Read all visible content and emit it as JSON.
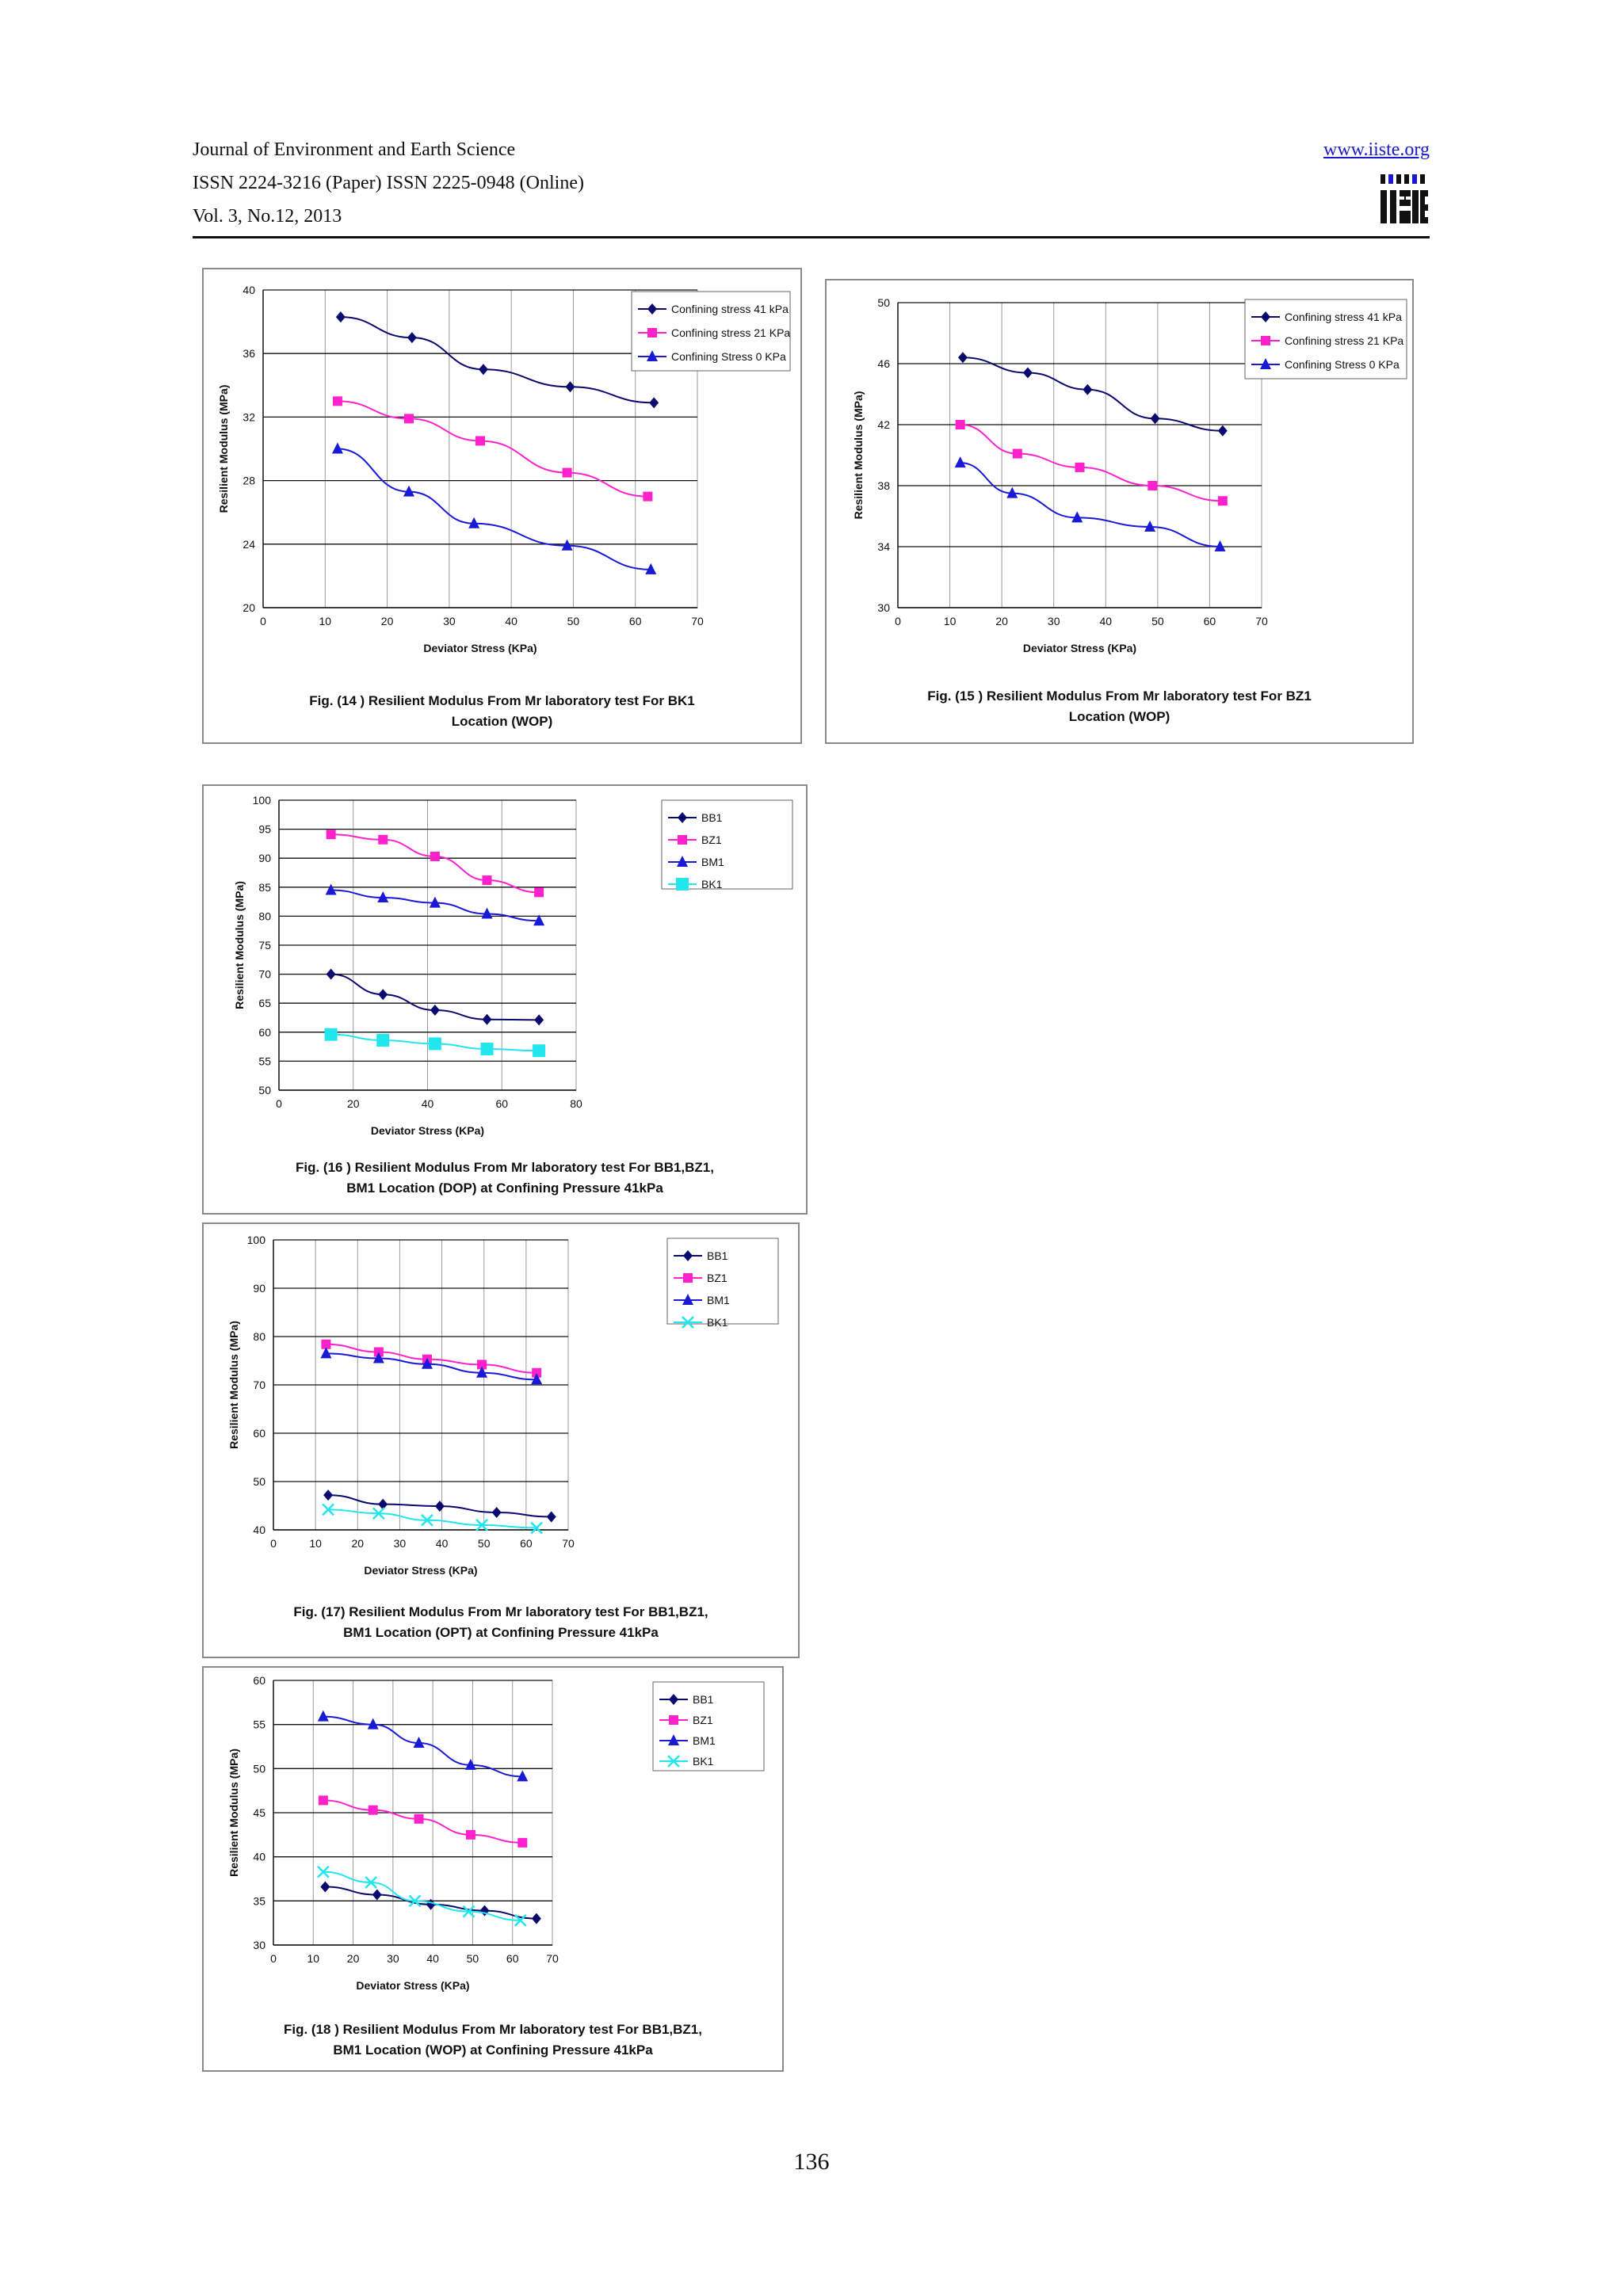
{
  "header": {
    "journal": "Journal of Environment and Earth Science",
    "issn": "ISSN 2224-3216 (Paper) ISSN 2225-0948 (Online)",
    "volume": "Vol. 3, No.12, 2013",
    "url": "www.iiste.org",
    "logo_text": "IISTE"
  },
  "page_number": "136",
  "colors": {
    "navy": "#0a0a6e",
    "magenta": "#ff22cc",
    "blue": "#1a1ad6",
    "cyan": "#22e6ee"
  },
  "chart_data": [
    {
      "type": "line",
      "title": "Fig. (14 )  Resilient Modulus From Mr laboratory test For  BK1 Location (WOP)",
      "title_lines": [
        "Fig. (14 )  Resilient Modulus From Mr laboratory test For  BK1",
        "Location (WOP)"
      ],
      "xlabel": "Deviator Stress (KPa)",
      "ylabel": "Resilient Modulus (MPa)",
      "xlim": [
        0,
        70
      ],
      "ylim": [
        20,
        40
      ],
      "xticks": [
        0,
        10,
        20,
        30,
        40,
        50,
        60,
        70
      ],
      "yticks": [
        20,
        24,
        28,
        32,
        36,
        40
      ],
      "legend": "top-right",
      "series": [
        {
          "name": "Confining stress 41 kPa",
          "color": "#0a0a6e",
          "marker": "diamond",
          "x": [
            12.5,
            24,
            35.5,
            49.5,
            63
          ],
          "y": [
            38.3,
            37,
            35,
            33.9,
            32.9
          ]
        },
        {
          "name": "Confining stress 21 KPa",
          "color": "#ff22cc",
          "marker": "square",
          "x": [
            12,
            23.5,
            35,
            49,
            62
          ],
          "y": [
            33,
            31.9,
            30.5,
            28.5,
            27
          ]
        },
        {
          "name": "Confining Stress 0 KPa",
          "color": "#1a1ad6",
          "marker": "triangle",
          "x": [
            12,
            23.5,
            34,
            49,
            62.5
          ],
          "y": [
            30,
            27.3,
            25.3,
            23.9,
            22.4
          ]
        }
      ]
    },
    {
      "type": "line",
      "title": "Fig. (15 )  Resilient Modulus From Mr laboratory test For  BZ1 Location (WOP)",
      "title_lines": [
        "Fig. (15 )  Resilient Modulus From Mr laboratory test For  BZ1",
        "Location (WOP)"
      ],
      "xlabel": "Deviator Stress (KPa)",
      "ylabel": "Resilient Modulus (MPa)",
      "xlim": [
        0,
        70
      ],
      "ylim": [
        30,
        50
      ],
      "xticks": [
        0,
        10,
        20,
        30,
        40,
        50,
        60,
        70
      ],
      "yticks": [
        30,
        34,
        38,
        42,
        46,
        50
      ],
      "legend": "top-right",
      "series": [
        {
          "name": "Confining stress 41 kPa",
          "color": "#0a0a6e",
          "marker": "diamond",
          "x": [
            12.5,
            25,
            36.5,
            49.5,
            62.5
          ],
          "y": [
            46.4,
            45.4,
            44.3,
            42.4,
            41.6
          ]
        },
        {
          "name": "Confining stress 21 KPa",
          "color": "#ff22cc",
          "marker": "square",
          "x": [
            12,
            23,
            35,
            49,
            62.5
          ],
          "y": [
            42,
            40.1,
            39.2,
            38,
            37
          ]
        },
        {
          "name": "Confining Stress 0 KPa",
          "color": "#1a1ad6",
          "marker": "triangle",
          "x": [
            12,
            22,
            34.5,
            48.5,
            62
          ],
          "y": [
            39.5,
            37.5,
            35.9,
            35.3,
            34
          ]
        }
      ]
    },
    {
      "type": "line",
      "title": "Fig. (16 )  Resilient Modulus From Mr laboratory test For BB1,BZ1, BM1 Location (DOP) at Confining Pressure 41kPa",
      "title_lines": [
        "Fig. (16 )  Resilient Modulus From Mr laboratory test For BB1,BZ1,",
        "BM1 Location (DOP) at Confining Pressure 41kPa"
      ],
      "xlabel": "Deviator Stress (KPa)",
      "ylabel": "Resilient Modulus (MPa)",
      "xlim": [
        0,
        80
      ],
      "ylim": [
        50,
        100
      ],
      "xticks": [
        0,
        20,
        40,
        60,
        80
      ],
      "yticks": [
        50,
        55,
        60,
        65,
        70,
        75,
        80,
        85,
        90,
        95,
        100
      ],
      "legend": "top-right",
      "series": [
        {
          "name": "BB1",
          "color": "#0a0a6e",
          "marker": "diamond",
          "x": [
            14,
            28,
            42,
            56,
            70
          ],
          "y": [
            70,
            66.5,
            63.8,
            62.2,
            62.1
          ]
        },
        {
          "name": "BZ1",
          "color": "#ff22cc",
          "marker": "square",
          "x": [
            14,
            28,
            42,
            56,
            70
          ],
          "y": [
            94.1,
            93.2,
            90.3,
            86.2,
            84.1
          ]
        },
        {
          "name": "BM1",
          "color": "#1a1ad6",
          "marker": "triangle",
          "x": [
            14,
            28,
            42,
            56,
            70
          ],
          "y": [
            84.5,
            83.2,
            82.3,
            80.4,
            79.2
          ]
        },
        {
          "name": "BK1",
          "color": "#22e6ee",
          "marker": "bigsquare",
          "x": [
            14,
            28,
            42,
            56,
            70
          ],
          "y": [
            59.6,
            58.6,
            58,
            57.1,
            56.8
          ]
        }
      ]
    },
    {
      "type": "line",
      "title": "Fig. (17)  Resilient Modulus From Mr laboratory test For BB1,BZ1, BM1 Location (OPT) at Confining Pressure 41kPa",
      "title_lines": [
        "Fig. (17)  Resilient Modulus From Mr laboratory test For BB1,BZ1,",
        "BM1 Location (OPT) at Confining Pressure 41kPa"
      ],
      "xlabel": "Deviator Stress (KPa)",
      "ylabel": "Resilient Modulus (MPa)",
      "xlim": [
        0,
        70
      ],
      "ylim": [
        40,
        100
      ],
      "xticks": [
        0,
        10,
        20,
        30,
        40,
        50,
        60,
        70
      ],
      "yticks": [
        40,
        50,
        60,
        70,
        80,
        90,
        100
      ],
      "legend": "top-right",
      "series": [
        {
          "name": "BB1",
          "color": "#0a0a6e",
          "marker": "diamond",
          "x": [
            13,
            26,
            39.5,
            53,
            66
          ],
          "y": [
            47.2,
            45.3,
            44.9,
            43.6,
            42.7
          ]
        },
        {
          "name": "BZ1",
          "color": "#ff22cc",
          "marker": "square",
          "x": [
            12.5,
            25,
            36.5,
            49.5,
            62.5
          ],
          "y": [
            78.4,
            76.8,
            75.3,
            74.2,
            72.5
          ]
        },
        {
          "name": "BM1",
          "color": "#1a1ad6",
          "marker": "triangle",
          "x": [
            12.5,
            25,
            36.5,
            49.5,
            62.5
          ],
          "y": [
            76.5,
            75.5,
            74.3,
            72.5,
            71.1
          ]
        },
        {
          "name": "BK1",
          "color": "#22e6ee",
          "marker": "cross",
          "x": [
            13,
            25,
            36.5,
            49.5,
            62.5
          ],
          "y": [
            44.2,
            43.4,
            42,
            41,
            40.4
          ]
        }
      ]
    },
    {
      "type": "line",
      "title": "Fig. (18 )  Resilient Modulus From Mr laboratory test For BB1,BZ1, BM1 Location (WOP) at Confining Pressure 41kPa",
      "title_lines": [
        "Fig. (18 )  Resilient Modulus From Mr laboratory test For BB1,BZ1,",
        "BM1 Location (WOP) at Confining Pressure 41kPa"
      ],
      "xlabel": "Deviator Stress (KPa)",
      "ylabel": "Resilient Modulus (MPa)",
      "xlim": [
        0,
        70
      ],
      "ylim": [
        30,
        60
      ],
      "xticks": [
        0,
        10,
        20,
        30,
        40,
        50,
        60,
        70
      ],
      "yticks": [
        30,
        35,
        40,
        45,
        50,
        55,
        60
      ],
      "legend": "top-right",
      "series": [
        {
          "name": "BB1",
          "color": "#0a0a6e",
          "marker": "diamond",
          "x": [
            13,
            26,
            39.5,
            53,
            66
          ],
          "y": [
            36.6,
            35.7,
            34.6,
            33.9,
            33
          ]
        },
        {
          "name": "BZ1",
          "color": "#ff22cc",
          "marker": "square",
          "x": [
            12.5,
            25,
            36.5,
            49.5,
            62.5
          ],
          "y": [
            46.4,
            45.3,
            44.3,
            42.5,
            41.6
          ]
        },
        {
          "name": "BM1",
          "color": "#1a1ad6",
          "marker": "triangle",
          "x": [
            12.5,
            25,
            36.5,
            49.5,
            62.5
          ],
          "y": [
            55.9,
            55,
            52.9,
            50.4,
            49.1
          ]
        },
        {
          "name": "BK1",
          "color": "#22e6ee",
          "marker": "cross",
          "x": [
            12.5,
            24.5,
            35.5,
            49,
            62
          ],
          "y": [
            38.3,
            37.1,
            35,
            33.8,
            32.8
          ]
        }
      ]
    }
  ]
}
